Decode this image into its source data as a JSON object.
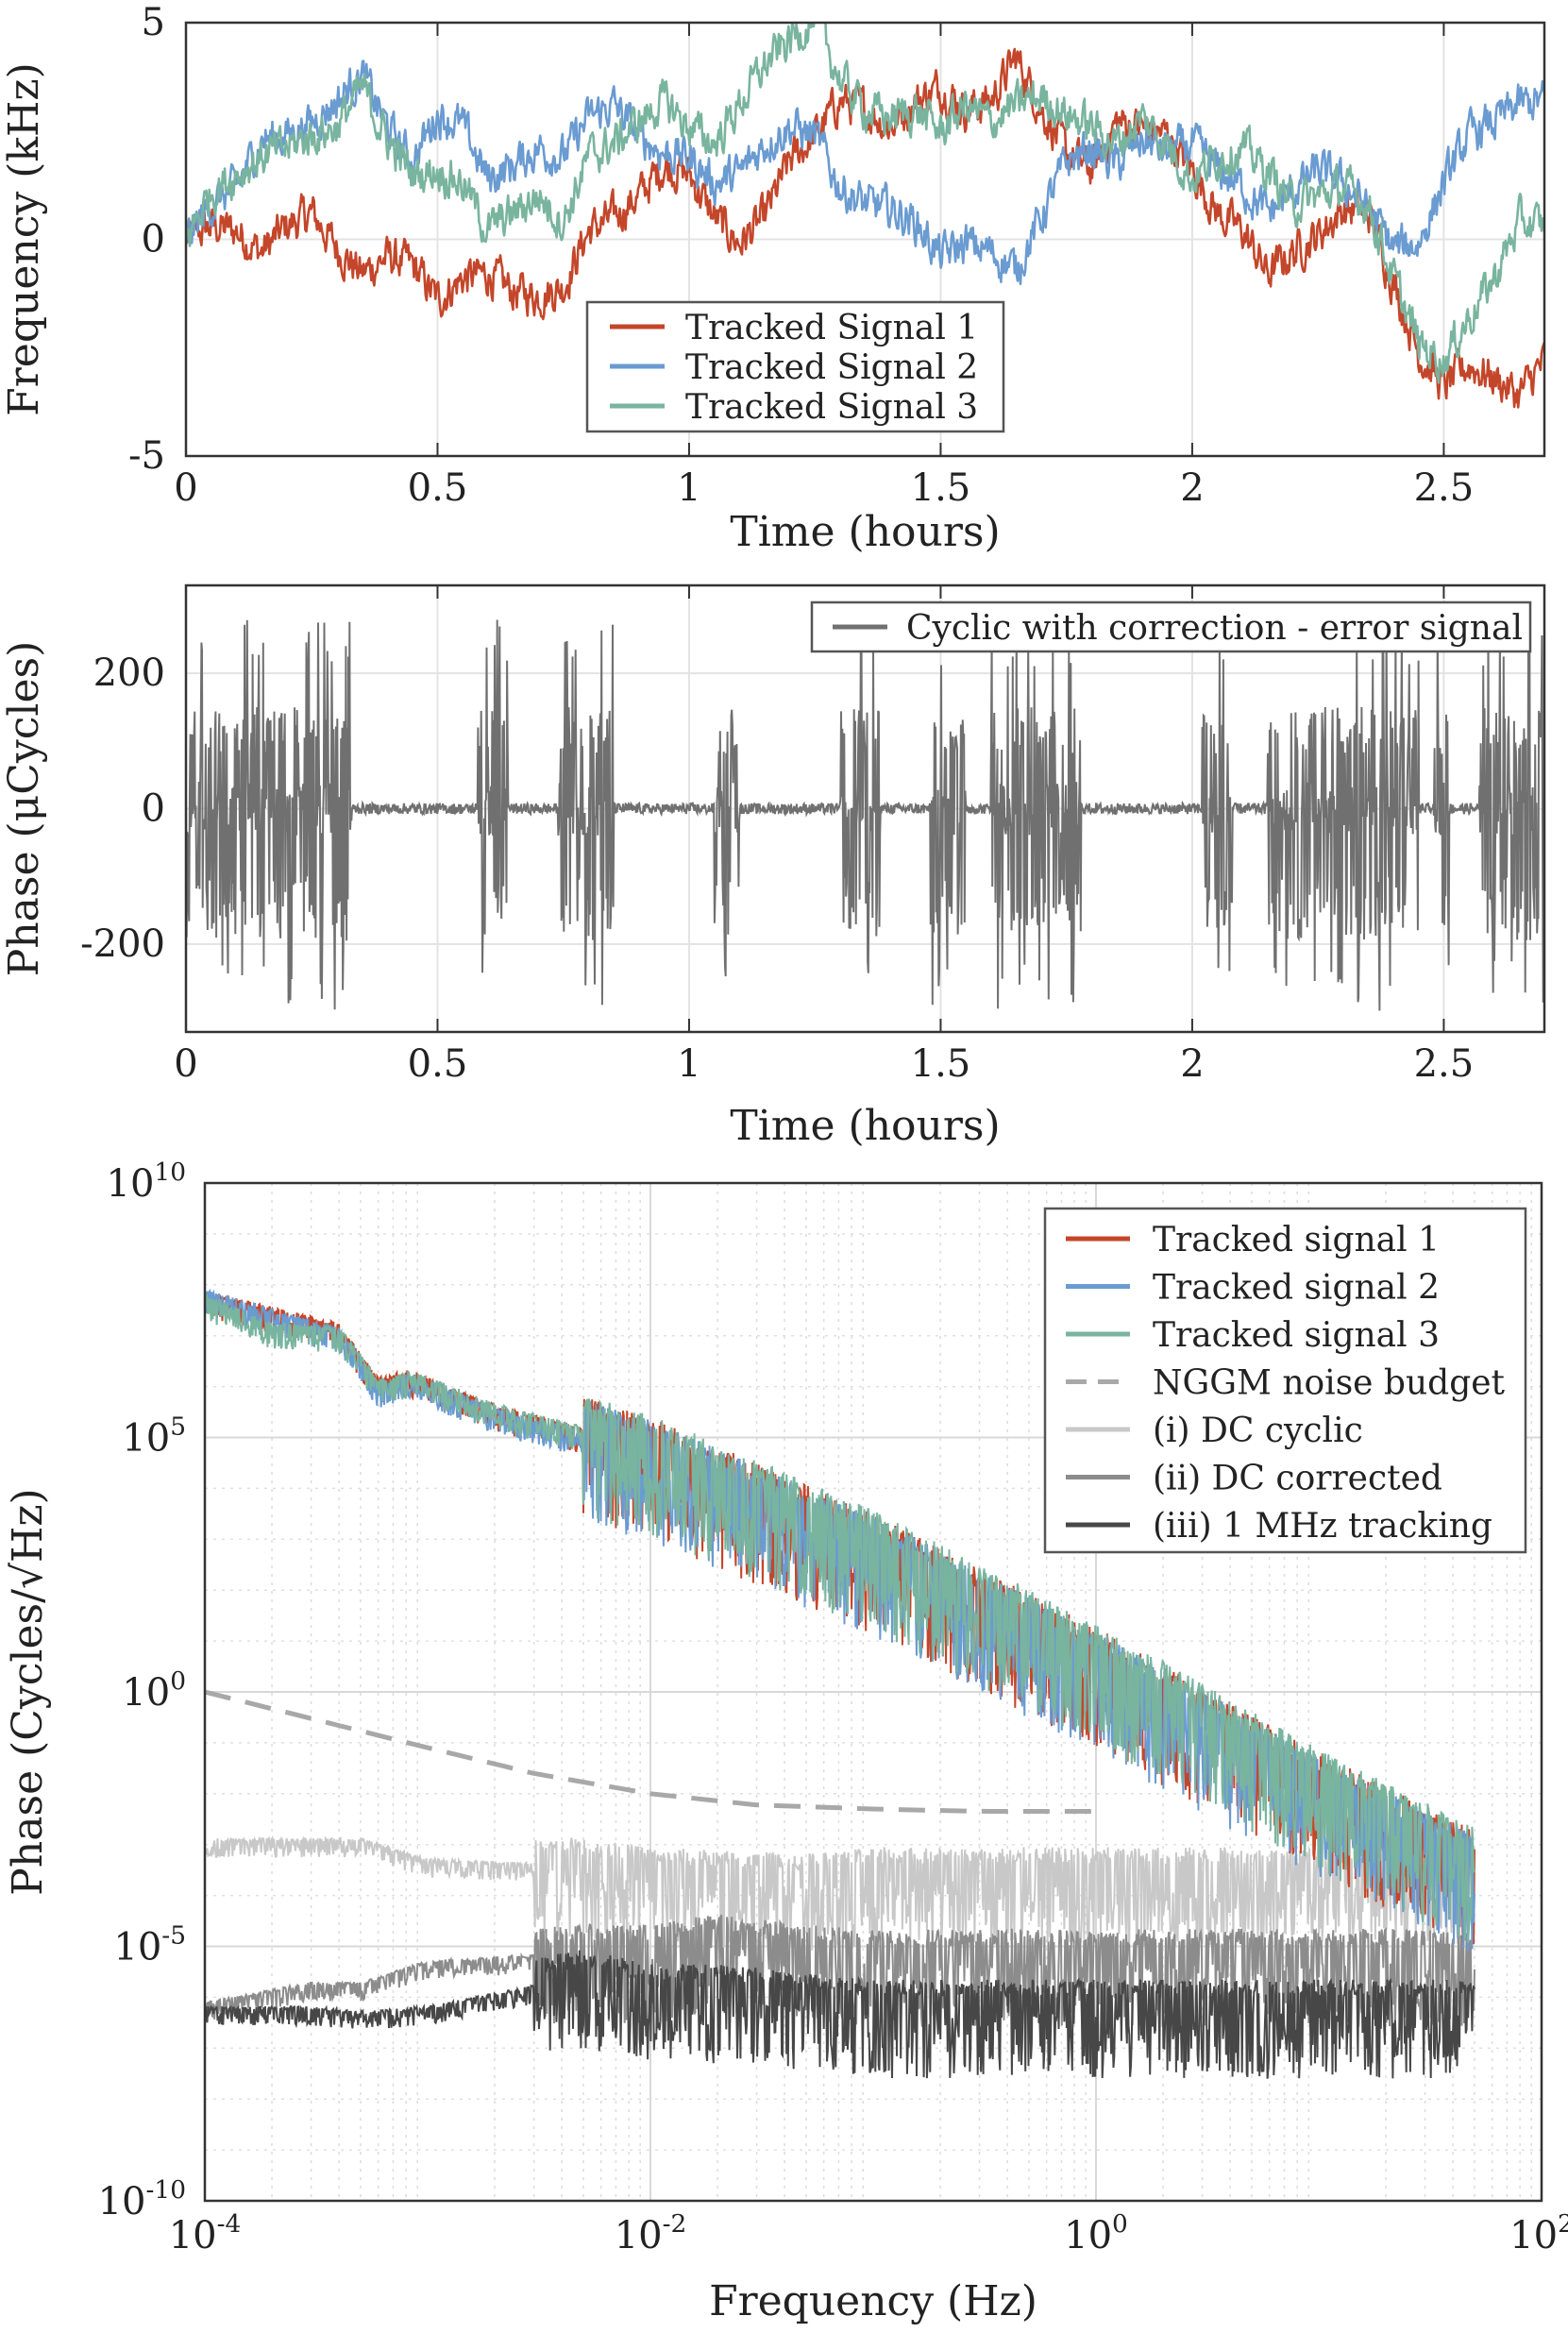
{
  "chart_data": [
    {
      "type": "line",
      "xlabel": "Time (hours)",
      "ylabel": "Frequency (kHz)",
      "xlim": [
        0,
        2.7
      ],
      "ylim": [
        -5,
        5
      ],
      "xticks": [
        0,
        0.5,
        1,
        1.5,
        2,
        2.5
      ],
      "xtick_labels": [
        "0",
        "0.5",
        "1",
        "1.5",
        "2",
        "2.5"
      ],
      "yticks": [
        -5,
        0,
        5
      ],
      "ytick_labels": [
        "-5",
        "0",
        "5"
      ],
      "grid": true,
      "legend_position": "bottom-center",
      "series": [
        {
          "name": "Tracked Signal 1",
          "color": "#c4462a",
          "x": [
            0,
            0.05,
            0.1,
            0.15,
            0.2,
            0.25,
            0.3,
            0.35,
            0.4,
            0.45,
            0.5,
            0.55,
            0.6,
            0.65,
            0.7,
            0.75,
            0.8,
            0.85,
            0.9,
            0.95,
            1.0,
            1.05,
            1.1,
            1.15,
            1.2,
            1.25,
            1.3,
            1.35,
            1.4,
            1.45,
            1.5,
            1.55,
            1.6,
            1.65,
            1.7,
            1.75,
            1.8,
            1.85,
            1.9,
            1.95,
            2.0,
            2.05,
            2.1,
            2.15,
            2.2,
            2.25,
            2.3,
            2.35,
            2.4,
            2.45,
            2.5,
            2.55,
            2.6,
            2.65,
            2.7
          ],
          "y": [
            0,
            0.3,
            0.2,
            -0.3,
            0.3,
            0.6,
            -0.2,
            -0.8,
            -0.4,
            -0.6,
            -1.4,
            -0.9,
            -0.8,
            -1.2,
            -1.3,
            -1.1,
            0.2,
            0.5,
            1.0,
            1.7,
            1.5,
            0.5,
            -0.1,
            0.5,
            1.8,
            2.4,
            3.2,
            3.0,
            2.6,
            3.2,
            3.5,
            3.0,
            3.2,
            4.2,
            3.0,
            2.0,
            1.6,
            2.7,
            2.6,
            2.4,
            1.6,
            0.6,
            0.2,
            -0.8,
            -0.3,
            0.1,
            0.7,
            0.6,
            -1.0,
            -2.6,
            -3.4,
            -2.9,
            -3.2,
            -3.6,
            -2.8
          ]
        },
        {
          "name": "Tracked Signal 2",
          "color": "#6a9bd1",
          "x": [
            0,
            0.05,
            0.1,
            0.15,
            0.2,
            0.25,
            0.3,
            0.35,
            0.4,
            0.45,
            0.5,
            0.55,
            0.6,
            0.65,
            0.7,
            0.75,
            0.8,
            0.85,
            0.9,
            0.95,
            1.0,
            1.05,
            1.1,
            1.15,
            1.2,
            1.25,
            1.3,
            1.35,
            1.4,
            1.45,
            1.5,
            1.55,
            1.6,
            1.65,
            1.7,
            1.75,
            1.8,
            1.85,
            1.9,
            1.95,
            2.0,
            2.05,
            2.1,
            2.15,
            2.2,
            2.25,
            2.3,
            2.35,
            2.4,
            2.45,
            2.5,
            2.55,
            2.6,
            2.65,
            2.7
          ],
          "y": [
            0,
            0.8,
            1.2,
            2.3,
            2.4,
            2.7,
            3.2,
            3.8,
            2.6,
            1.8,
            2.9,
            2.6,
            1.4,
            1.7,
            2.1,
            1.9,
            2.8,
            3.1,
            2.4,
            2.0,
            1.9,
            1.3,
            1.5,
            2.2,
            2.6,
            2.4,
            1.2,
            0.8,
            0.7,
            0.4,
            -0.4,
            -0.1,
            -0.3,
            -0.7,
            0.5,
            1.8,
            2.1,
            1.7,
            2.3,
            2.0,
            2.2,
            1.6,
            1.2,
            0.6,
            1.1,
            1.6,
            1.3,
            0.7,
            -0.2,
            -0.1,
            1.3,
            2.4,
            2.7,
            3.1,
            3.2
          ]
        },
        {
          "name": "Tracked Signal 3",
          "color": "#79b49f",
          "x": [
            0,
            0.05,
            0.1,
            0.15,
            0.2,
            0.25,
            0.3,
            0.35,
            0.4,
            0.45,
            0.5,
            0.55,
            0.6,
            0.65,
            0.7,
            0.75,
            0.8,
            0.85,
            0.9,
            0.95,
            1.0,
            1.05,
            1.1,
            1.15,
            1.2,
            1.25,
            1.3,
            1.35,
            1.4,
            1.45,
            1.5,
            1.55,
            1.6,
            1.65,
            1.7,
            1.75,
            1.8,
            1.85,
            1.9,
            1.95,
            2.0,
            2.05,
            2.1,
            2.15,
            2.2,
            2.25,
            2.3,
            2.35,
            2.4,
            2.45,
            2.5,
            2.55,
            2.6,
            2.65,
            2.7
          ],
          "y": [
            0,
            1.1,
            1.5,
            1.9,
            2.1,
            2.4,
            2.6,
            3.5,
            2.3,
            1.5,
            1.6,
            1.3,
            0.2,
            0.6,
            1.0,
            0.4,
            1.9,
            2.2,
            2.7,
            3.2,
            2.6,
            2.2,
            3.1,
            4.0,
            4.6,
            5.1,
            3.7,
            3.0,
            2.8,
            3.0,
            2.5,
            3.1,
            2.7,
            3.1,
            3.3,
            2.9,
            2.6,
            2.2,
            2.8,
            2.2,
            1.4,
            1.9,
            2.1,
            1.6,
            0.8,
            1.0,
            1.2,
            0.8,
            -0.9,
            -2.4,
            -2.8,
            -1.8,
            -0.9,
            0.4,
            0.3
          ]
        }
      ],
      "legend": [
        "Tracked Signal 1",
        "Tracked Signal 2",
        "Tracked Signal 3"
      ]
    },
    {
      "type": "line",
      "xlabel": "Time (hours)",
      "ylabel": "Phase (μCycles)",
      "xlim": [
        0,
        2.7
      ],
      "ylim": [
        -330,
        330
      ],
      "xticks": [
        0,
        0.5,
        1,
        1.5,
        2,
        2.5
      ],
      "xtick_labels": [
        "0",
        "0.5",
        "1",
        "1.5",
        "2",
        "2.5"
      ],
      "yticks": [
        -200,
        0,
        200
      ],
      "ytick_labels": [
        "-200",
        "0",
        "200"
      ],
      "grid": true,
      "legend_position": "top-right",
      "series": [
        {
          "name": "Cyclic with correction - error signal",
          "color": "#707070",
          "baseline_noise": 8,
          "burst_intervals_hours": [
            [
              0,
              0.33
            ],
            [
              0.58,
              0.64
            ],
            [
              0.74,
              0.85
            ],
            [
              1.05,
              1.1
            ],
            [
              1.3,
              1.38
            ],
            [
              1.48,
              1.55
            ],
            [
              1.6,
              1.78
            ],
            [
              2.02,
              2.08
            ],
            [
              2.15,
              2.45
            ],
            [
              2.48,
              2.51
            ],
            [
              2.57,
              2.7
            ]
          ],
          "burst_amplitude_range": [
            -300,
            280
          ]
        }
      ],
      "legend": [
        "Cyclic with correction - error signal"
      ]
    },
    {
      "type": "line",
      "xscale": "log",
      "yscale": "log",
      "xlabel": "Frequency (Hz)",
      "ylabel": "Phase (Cycles/√Hz)",
      "xlim": [
        0.0001,
        100
      ],
      "ylim": [
        1e-10,
        10000000000.0
      ],
      "xtick_labels": [
        "10^-4",
        "10^-2",
        "10^0",
        "10^2"
      ],
      "ytick_labels": [
        "10^-10",
        "10^-5",
        "10^0",
        "10^5",
        "10^10"
      ],
      "grid": true,
      "legend_position": "top-right",
      "series": [
        {
          "name": "Tracked signal 1",
          "color": "#c4462a",
          "x": [
            0.0001,
            0.0002,
            0.0004,
            0.0005,
            0.0006,
            0.0008,
            0.001,
            0.002,
            0.005,
            0.01,
            0.1,
            1,
            10,
            50
          ],
          "y": [
            50000000.0,
            25000000.0,
            12000000.0,
            3000000.0,
            1000000.0,
            1500000.0,
            1000000.0,
            300000.0,
            100000.0,
            40000.0,
            500.0,
            3.0,
            0.01,
            0.0003
          ]
        },
        {
          "name": "Tracked signal 2",
          "color": "#6a9bd1",
          "x": [
            0.0001,
            0.0002,
            0.0004,
            0.0005,
            0.0006,
            0.0008,
            0.001,
            0.002,
            0.005,
            0.01,
            0.1,
            1,
            10,
            50
          ],
          "y": [
            60000000.0,
            22000000.0,
            10000000.0,
            2500000.0,
            800000.0,
            1200000.0,
            900000.0,
            250000.0,
            90000.0,
            35000.0,
            450.0,
            2.5,
            0.008,
            0.00025
          ]
        },
        {
          "name": "Tracked signal 3",
          "color": "#79b49f",
          "x": [
            0.0001,
            0.0002,
            0.0004,
            0.0005,
            0.0006,
            0.0008,
            0.001,
            0.002,
            0.005,
            0.01,
            0.1,
            1,
            10,
            50
          ],
          "y": [
            45000000.0,
            12000000.0,
            10000000.0,
            3000000.0,
            900000.0,
            1300000.0,
            1100000.0,
            320000.0,
            110000.0,
            45000.0,
            600.0,
            3.5,
            0.012,
            0.00035
          ]
        },
        {
          "name": "NGGM noise budget",
          "color": "#a8a8a8",
          "dashed": true,
          "x": [
            0.0001,
            0.0003,
            0.001,
            0.003,
            0.01,
            0.03,
            0.1,
            0.3,
            1
          ],
          "y": [
            1,
            0.3,
            0.08,
            0.025,
            0.01,
            0.006,
            0.005,
            0.0045,
            0.0045
          ]
        },
        {
          "name": "(i)    DC cyclic",
          "color": "#c8c8c8",
          "x": [
            0.0001,
            0.0005,
            0.001,
            0.005,
            0.01,
            0.05,
            0.1,
            1,
            10,
            50
          ],
          "y": [
            0.001,
            0.001,
            0.0004,
            0.0003,
            0.0002,
            0.00015,
            0.0002,
            0.0002,
            0.0002,
            0.0002
          ]
        },
        {
          "name": "(ii)   DC corrected",
          "color": "#8c8c8c",
          "x": [
            0.0001,
            0.0003,
            0.0005,
            0.001,
            0.005,
            0.01,
            0.02,
            0.05,
            0.1,
            1,
            10,
            50
          ],
          "y": [
            6e-07,
            1.5e-06,
            1.5e-06,
            4e-06,
            6e-06,
            6e-06,
            1e-05,
            6e-06,
            5e-06,
            5e-06,
            5e-06,
            5e-06
          ]
        },
        {
          "name": "(iii)  1 MHz tracking",
          "color": "#474747",
          "x": [
            0.0001,
            0.0003,
            0.0005,
            0.001,
            0.005,
            0.01,
            0.02,
            0.05,
            0.1,
            1,
            10,
            50
          ],
          "y": [
            5e-07,
            5e-07,
            4e-07,
            5e-07,
            2e-06,
            1e-06,
            1e-06,
            7e-07,
            5e-07,
            5e-07,
            5e-07,
            5e-07
          ]
        }
      ],
      "legend": [
        "Tracked signal 1",
        "Tracked signal 2",
        "Tracked signal 3",
        "NGGM noise budget",
        "(i)    DC cyclic",
        "(ii)   DC corrected",
        "(iii)  1 MHz tracking"
      ]
    }
  ]
}
